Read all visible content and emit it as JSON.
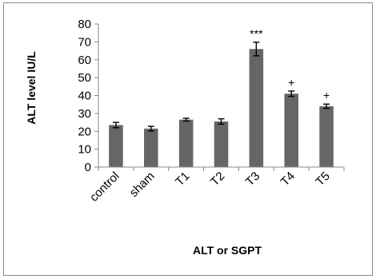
{
  "chart_data": {
    "type": "bar",
    "categories": [
      "control",
      "sham",
      "T1",
      "T2",
      "T3",
      "T4",
      "T5"
    ],
    "values": [
      23.5,
      21.5,
      26.5,
      25.5,
      66,
      41,
      34
    ],
    "errors": [
      1.5,
      1.3,
      0.8,
      1.5,
      3.8,
      1.5,
      1.2
    ],
    "annotations": [
      "",
      "",
      "",
      "",
      "***",
      "+",
      "+"
    ],
    "ylabel": "ALT level  IU/L",
    "xlabel": "ALT or SGPT",
    "ylim": [
      0,
      80
    ],
    "yticks": [
      0,
      10,
      20,
      30,
      40,
      50,
      60,
      70,
      80
    ],
    "bar_color": "#666666",
    "grid": false,
    "legend": false
  }
}
